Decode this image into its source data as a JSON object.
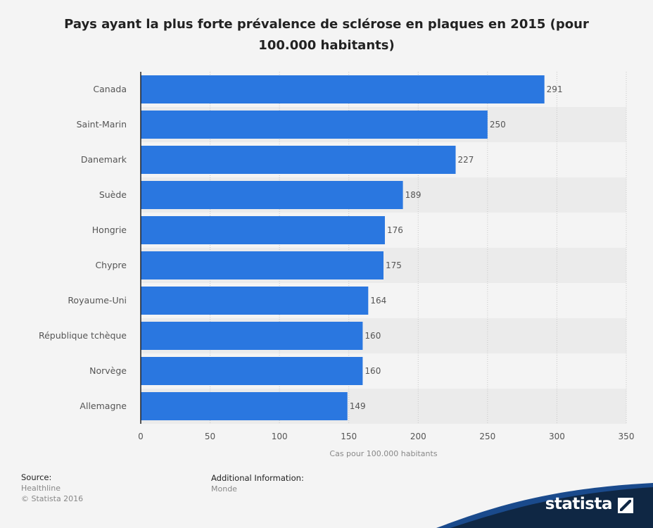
{
  "chart_data": {
    "type": "bar",
    "orientation": "horizontal",
    "title": "Pays ayant la plus forte prévalence de sclérose en plaques en 2015 (pour 100.000 habitants)",
    "categories": [
      "Canada",
      "Saint-Marin",
      "Danemark",
      "Suède",
      "Hongrie",
      "Chypre",
      "Royaume-Uni",
      "République tchèque",
      "Norvège",
      "Allemagne"
    ],
    "values": [
      291,
      250,
      227,
      189,
      176,
      175,
      164,
      160,
      160,
      149
    ],
    "data_labels": [
      "291",
      "250",
      "227",
      "189",
      "176",
      "175",
      "164",
      "160",
      "160",
      "149"
    ],
    "xlabel": "Cas pour 100.000 habitants",
    "ylabel": "",
    "xlim": [
      0,
      350
    ],
    "ticks": [
      0,
      50,
      100,
      150,
      200,
      250,
      300,
      350
    ],
    "tick_labels": [
      "0",
      "50",
      "100",
      "150",
      "200",
      "250",
      "300",
      "350"
    ],
    "bar_color": "#2a77e0",
    "grid": true
  },
  "footer": {
    "source_label": "Source:",
    "source_lines": [
      "Healthline",
      "© Statista 2016"
    ],
    "additional_label": "Additional Information:",
    "additional_lines": [
      "Monde"
    ],
    "brand": "statista"
  },
  "colors": {
    "background": "#f4f4f4",
    "band": "#ebebeb",
    "brand_dark": "#0f2744",
    "brand_accent": "#1a4a8c"
  }
}
